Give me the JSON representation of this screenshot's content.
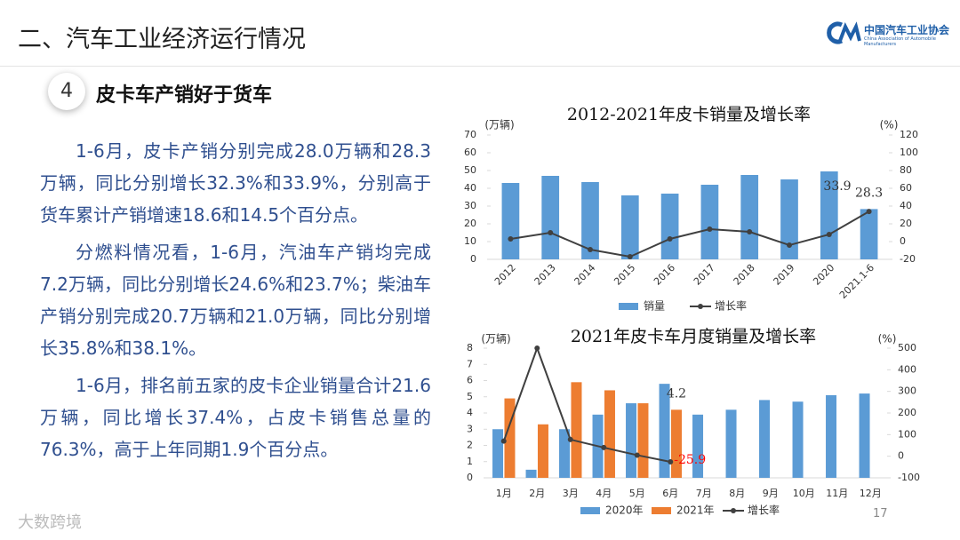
{
  "header": {
    "title": "二、汽车工业经济运行情况",
    "logo_text": "中国汽车工业协会",
    "logo_subtext": "China Association of Automobile Manufacturers"
  },
  "section": {
    "number": "4",
    "title": "皮卡车产销好于货车"
  },
  "paragraphs": [
    "1-6月，皮卡产销分别完成28.0万辆和28.3万辆，同比分别增长32.3%和33.9%，分别高于货车累计产销增速18.6和14.5个百分点。",
    "分燃料情况看，1-6月，汽油车产销均完成7.2万辆，同比分别增长24.6%和23.7%；柴油车产销分别完成20.7万辆和21.0万辆，同比分别增长35.8%和38.1%。",
    "1-6月，排名前五家的皮卡企业销量合计21.6万辆，同比增长37.4%，占皮卡销售总量的76.3%，高于上年同期1.9个百分点。"
  ],
  "watermark": "大数跨境",
  "page_number": "17",
  "chart_data": [
    {
      "type": "combo",
      "title": "2012-2021年皮卡销量及增长率",
      "y_label": "(万辆)",
      "y2_label": "(%)",
      "categories": [
        "2012",
        "2013",
        "2014",
        "2015",
        "2016",
        "2017",
        "2018",
        "2019",
        "2020",
        "2021.1-6"
      ],
      "series": [
        {
          "name": "销量",
          "kind": "bar",
          "color": "#5b9bd5",
          "values": [
            43,
            47,
            43.5,
            36,
            37,
            42,
            47.5,
            45,
            49.5,
            28.3
          ],
          "value_labels": [
            null,
            null,
            null,
            null,
            null,
            null,
            null,
            null,
            null,
            "28.3"
          ],
          "label_color": "#333333"
        },
        {
          "name": "增长率",
          "kind": "line",
          "axis": "y2",
          "color": "#404040",
          "values": [
            3,
            10,
            -9,
            -17,
            3,
            14,
            11,
            -4,
            8,
            33.9
          ],
          "value_labels": [
            null,
            null,
            null,
            null,
            null,
            null,
            null,
            null,
            null,
            "33.9"
          ],
          "label_color": "#333333"
        }
      ],
      "ylim": [
        0,
        70
      ],
      "yticks": [
        0,
        10,
        20,
        30,
        40,
        50,
        60,
        70
      ],
      "y2lim": [
        -20,
        120
      ],
      "y2ticks": [
        -20,
        0,
        20,
        40,
        60,
        80,
        100,
        120
      ],
      "rotate_x_labels": true,
      "legend": "bottom"
    },
    {
      "type": "combo",
      "title": "2021年皮卡车月度销量及增长率",
      "y_label": "(万辆)",
      "y2_label": "(%)",
      "categories": [
        "1月",
        "2月",
        "3月",
        "4月",
        "5月",
        "6月",
        "7月",
        "8月",
        "9月",
        "10月",
        "11月",
        "12月"
      ],
      "series": [
        {
          "name": "2020年",
          "kind": "bar",
          "color": "#5b9bd5",
          "values": [
            3.0,
            0.5,
            3.0,
            3.9,
            4.6,
            5.8,
            3.9,
            4.2,
            4.8,
            4.7,
            5.1,
            5.2
          ]
        },
        {
          "name": "2021年",
          "kind": "bar",
          "color": "#ed7d31",
          "values": [
            4.9,
            3.3,
            5.9,
            5.4,
            4.6,
            4.2,
            null,
            null,
            null,
            null,
            null,
            null
          ],
          "value_labels": [
            null,
            null,
            null,
            null,
            null,
            "4.2",
            null,
            null,
            null,
            null,
            null,
            null
          ],
          "label_color": "#333333"
        },
        {
          "name": "增长率",
          "kind": "line",
          "axis": "y2",
          "color": "#404040",
          "values": [
            70,
            500,
            77,
            40,
            5,
            -25.9,
            null,
            null,
            null,
            null,
            null,
            null
          ],
          "value_labels": [
            null,
            null,
            null,
            null,
            null,
            "-25.9",
            null,
            null,
            null,
            null,
            null,
            null
          ],
          "label_color": "#ff0000"
        }
      ],
      "ylim": [
        0,
        8
      ],
      "yticks": [
        0,
        1,
        2,
        3,
        4,
        5,
        6,
        7,
        8
      ],
      "y2lim": [
        -100,
        500
      ],
      "y2ticks": [
        -100,
        0,
        100,
        200,
        300,
        400,
        500
      ],
      "rotate_x_labels": false,
      "legend": "bottom"
    }
  ]
}
